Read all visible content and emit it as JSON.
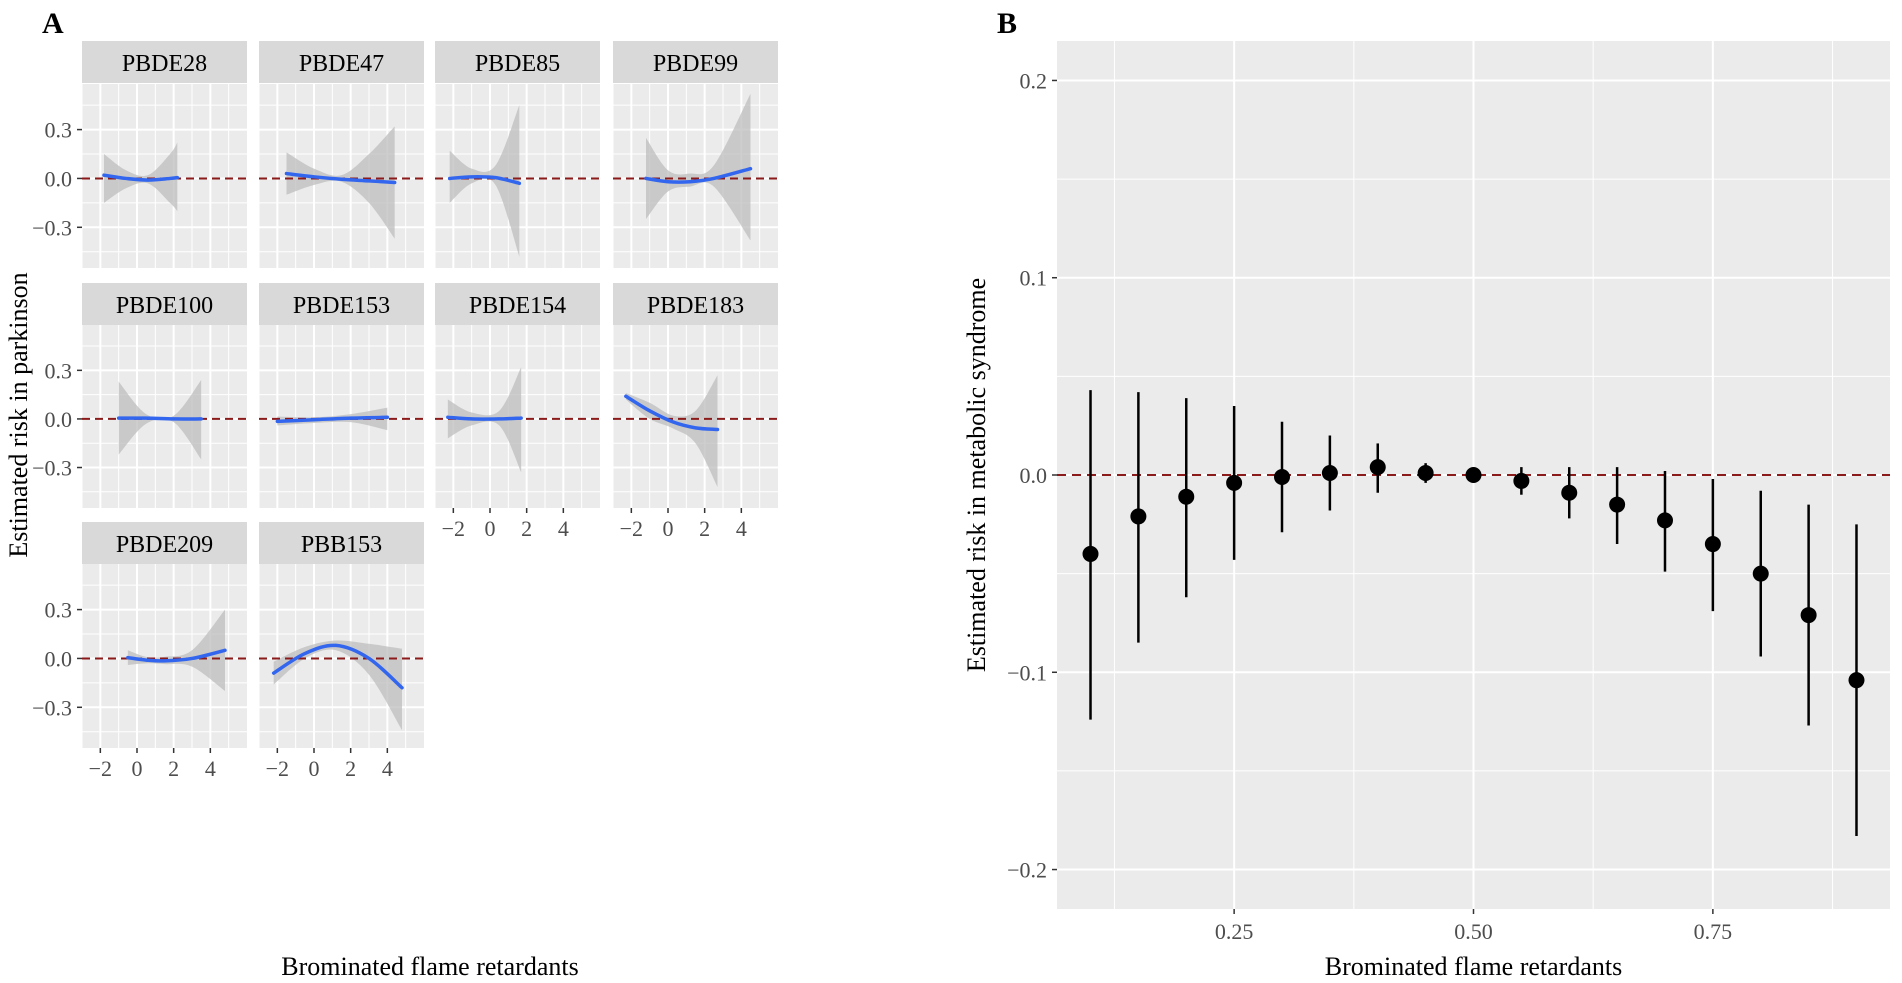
{
  "colors": {
    "panel_bg": "#ebebeb",
    "strip_bg": "#d9d9d9",
    "grid": "#ffffff",
    "ref_line": "#8b1a1a",
    "curve": "#3366ee",
    "ribbon": "#bdbdbd",
    "point": "#000000",
    "text": "#000000",
    "tick_text": "#4d4d4d"
  },
  "chart_data": [
    {
      "panel_label": "A",
      "type": "line",
      "facet_type": "faceted smooth curves with confidence ribbons",
      "xlabel": "Brominated flame retardants",
      "ylabel": "Estimated risk in parkinson",
      "xlim": [
        -3,
        6
      ],
      "ylim": [
        -0.55,
        0.58
      ],
      "x_ticks": [
        -2,
        0,
        2,
        4
      ],
      "x_tick_labels": [
        "−2",
        "0",
        "2",
        "4"
      ],
      "y_ticks": [
        -0.3,
        0.0,
        0.3
      ],
      "y_tick_labels": [
        "−0.3",
        "0.0",
        "0.3"
      ],
      "reference_line_y": 0,
      "facets": [
        {
          "name": "PBDE28",
          "x": [
            -1.8,
            -0.6,
            0.6,
            1.8,
            2.2
          ],
          "y": [
            0.02,
            0.0,
            -0.01,
            0.0,
            0.005
          ],
          "lower": [
            -0.15,
            -0.06,
            -0.03,
            -0.15,
            -0.2
          ],
          "upper": [
            0.15,
            0.05,
            0.02,
            0.15,
            0.22
          ]
        },
        {
          "name": "PBDE47",
          "x": [
            -1.5,
            0,
            1.5,
            3,
            4.4
          ],
          "y": [
            0.03,
            0.01,
            -0.005,
            -0.015,
            -0.025
          ],
          "lower": [
            -0.1,
            -0.04,
            -0.02,
            -0.15,
            -0.37
          ],
          "upper": [
            0.16,
            0.06,
            0.02,
            0.15,
            0.32
          ]
        },
        {
          "name": "PBDE85",
          "x": [
            -2.2,
            -1,
            0.3,
            1.6
          ],
          "y": [
            0.0,
            0.01,
            0.005,
            -0.03
          ],
          "lower": [
            -0.15,
            -0.03,
            -0.04,
            -0.48
          ],
          "upper": [
            0.17,
            0.06,
            0.08,
            0.45
          ]
        },
        {
          "name": "PBDE99",
          "x": [
            -1.2,
            0,
            1.2,
            2.5,
            4.5
          ],
          "y": [
            0.0,
            -0.02,
            -0.02,
            0.0,
            0.06
          ],
          "lower": [
            -0.25,
            -0.08,
            -0.05,
            -0.05,
            -0.38
          ],
          "upper": [
            0.25,
            0.05,
            0.03,
            0.08,
            0.52
          ]
        },
        {
          "name": "PBDE100",
          "x": [
            -1.0,
            0.5,
            2,
            3.5
          ],
          "y": [
            0.005,
            0.005,
            0.0,
            0.0
          ],
          "lower": [
            -0.22,
            -0.03,
            -0.02,
            -0.25
          ],
          "upper": [
            0.23,
            0.03,
            0.02,
            0.24
          ]
        },
        {
          "name": "PBDE153",
          "x": [
            -2,
            0,
            2,
            4
          ],
          "y": [
            -0.015,
            -0.005,
            0.005,
            0.01
          ],
          "lower": [
            -0.04,
            -0.025,
            -0.02,
            -0.07
          ],
          "upper": [
            0.015,
            0.01,
            0.03,
            0.07
          ]
        },
        {
          "name": "PBDE154",
          "x": [
            -2.3,
            -1,
            0.5,
            1.7
          ],
          "y": [
            0.01,
            0.0,
            0.0,
            0.005
          ],
          "lower": [
            -0.12,
            -0.04,
            -0.04,
            -0.33
          ],
          "upper": [
            0.12,
            0.04,
            0.05,
            0.32
          ]
        },
        {
          "name": "PBDE183",
          "x": [
            -2.3,
            -1,
            0.3,
            1.5,
            2.7
          ],
          "y": [
            0.14,
            0.05,
            -0.02,
            -0.055,
            -0.065
          ],
          "lower": [
            0.12,
            0.0,
            -0.06,
            -0.15,
            -0.42
          ],
          "upper": [
            0.16,
            0.1,
            0.02,
            0.05,
            0.27
          ]
        },
        {
          "name": "PBDE209",
          "x": [
            -0.5,
            0.5,
            1.5,
            3,
            4.8
          ],
          "y": [
            0.005,
            -0.01,
            -0.015,
            0.0,
            0.05
          ],
          "lower": [
            -0.04,
            -0.03,
            -0.035,
            -0.05,
            -0.2
          ],
          "upper": [
            0.05,
            0.01,
            0.01,
            0.05,
            0.3
          ]
        },
        {
          "name": "PBB153",
          "x": [
            -2.2,
            -0.5,
            1.2,
            3,
            4.8
          ],
          "y": [
            -0.09,
            0.03,
            0.08,
            0.0,
            -0.18
          ],
          "lower": [
            -0.16,
            0.0,
            0.05,
            -0.1,
            -0.44
          ],
          "upper": [
            -0.02,
            0.07,
            0.11,
            0.09,
            0.06
          ]
        }
      ]
    },
    {
      "panel_label": "B",
      "type": "scatter",
      "xlabel": "Brominated flame retardants",
      "ylabel": "Estimated risk in metabolic syndrome",
      "xlim": [
        0.065,
        0.935
      ],
      "ylim": [
        -0.22,
        0.22
      ],
      "x_ticks": [
        0.25,
        0.5,
        0.75
      ],
      "x_tick_labels": [
        "0.25",
        "0.50",
        "0.75"
      ],
      "y_ticks": [
        -0.2,
        -0.1,
        0.0,
        0.1,
        0.2
      ],
      "y_tick_labels": [
        "−0.2",
        "−0.1",
        "0.0",
        "0.1",
        "0.2"
      ],
      "reference_line_y": 0,
      "x": [
        0.1,
        0.15,
        0.2,
        0.25,
        0.3,
        0.35,
        0.4,
        0.45,
        0.5,
        0.55,
        0.6,
        0.65,
        0.7,
        0.75,
        0.8,
        0.85,
        0.9
      ],
      "y": [
        -0.04,
        -0.021,
        -0.011,
        -0.004,
        -0.001,
        0.001,
        0.004,
        0.001,
        0.0,
        -0.003,
        -0.009,
        -0.015,
        -0.023,
        -0.035,
        -0.05,
        -0.071,
        -0.104
      ],
      "lower": [
        -0.124,
        -0.085,
        -0.062,
        -0.043,
        -0.029,
        -0.018,
        -0.009,
        -0.004,
        -0.002,
        -0.01,
        -0.022,
        -0.035,
        -0.049,
        -0.069,
        -0.092,
        -0.127,
        -0.183
      ],
      "upper": [
        0.043,
        0.042,
        0.039,
        0.035,
        0.027,
        0.02,
        0.016,
        0.006,
        0.002,
        0.004,
        0.004,
        0.004,
        0.002,
        -0.002,
        -0.008,
        -0.015,
        -0.025
      ]
    }
  ]
}
